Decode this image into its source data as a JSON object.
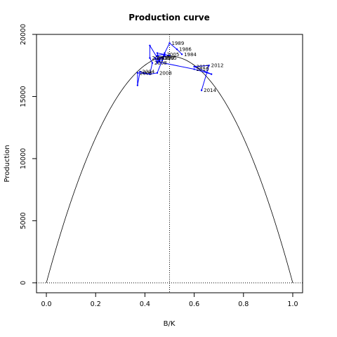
{
  "chart_data": {
    "type": "line",
    "title": "Production curve",
    "xlabel": "B/K",
    "ylabel": "Production",
    "xlim": [
      -0.04,
      1.04
    ],
    "ylim": [
      -800,
      20000
    ],
    "x_ticks": [
      0,
      0.2,
      0.4,
      0.6,
      0.8,
      1
    ],
    "x_tick_labels": [
      "0.0",
      "0.2",
      "0.4",
      "0.6",
      "0.8",
      "1.0"
    ],
    "y_ticks": [
      0,
      5000,
      10000,
      15000,
      20000
    ],
    "y_tick_labels": [
      "0",
      "5000",
      "10000",
      "15000",
      "20000"
    ],
    "colors": {
      "curve": "#000000",
      "series": "#0000ff",
      "reference": "#000000"
    },
    "reference_lines": {
      "vertical_x": 0.5,
      "horizontal_y": 0,
      "style": "dotted"
    },
    "curve": {
      "shape": "parabola",
      "x_start": 0,
      "x_end": 1,
      "peak_x": 0.5,
      "peak_y": 18250
    },
    "series": [
      {
        "x": [
          0.55,
          0.53,
          0.5,
          0.48,
          0.47,
          0.48,
          0.45,
          0.45,
          0.44,
          0.46,
          0.45,
          0.5,
          0.46,
          0.46,
          0.42,
          0.42,
          0.43,
          0.42,
          0.38,
          0.37,
          0.37,
          0.42,
          0.45,
          0.47,
          0.48,
          0.46,
          0.45,
          0.6,
          0.67,
          0.6,
          0.66,
          0.63
        ],
        "y": [
          18400,
          18800,
          19300,
          18500,
          18100,
          18400,
          18300,
          17700,
          18100,
          17900,
          18500,
          18300,
          18100,
          17800,
          19100,
          18100,
          17700,
          16800,
          17000,
          15900,
          16900,
          16800,
          16900,
          17900,
          18300,
          18000,
          17800,
          17200,
          16800,
          17400,
          17500,
          15500
        ],
        "point_labels": [
          {
            "index": 0,
            "text": "1984"
          },
          {
            "index": 2,
            "text": "1989"
          },
          {
            "index": 1,
            "text": "1986"
          },
          {
            "index": 4,
            "text": "1995"
          },
          {
            "index": 5,
            "text": "2005"
          },
          {
            "index": 8,
            "text": "2000"
          },
          {
            "index": 12,
            "text": "1990"
          },
          {
            "index": 15,
            "text": "2006"
          },
          {
            "index": 16,
            "text": "2008"
          },
          {
            "index": 18,
            "text": "2004"
          },
          {
            "index": 20,
            "text": "2006"
          },
          {
            "index": 22,
            "text": "2008"
          },
          {
            "index": 27,
            "text": "2010"
          },
          {
            "index": 29,
            "text": "2012"
          },
          {
            "index": 30,
            "text": "2012"
          },
          {
            "index": 31,
            "text": "2014"
          }
        ]
      }
    ]
  }
}
